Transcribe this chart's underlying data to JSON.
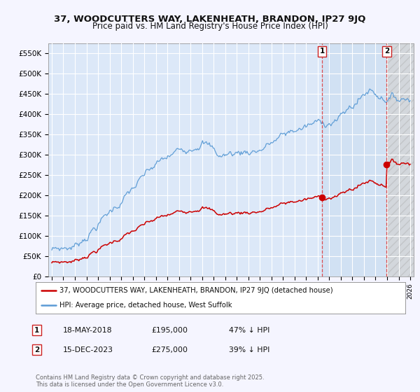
{
  "title": "37, WOODCUTTERS WAY, LAKENHEATH, BRANDON, IP27 9JQ",
  "subtitle": "Price paid vs. HM Land Registry's House Price Index (HPI)",
  "ylabel_ticks": [
    "£0",
    "£50K",
    "£100K",
    "£150K",
    "£200K",
    "£250K",
    "£300K",
    "£350K",
    "£400K",
    "£450K",
    "£500K",
    "£550K"
  ],
  "ytick_values": [
    0,
    50000,
    100000,
    150000,
    200000,
    250000,
    300000,
    350000,
    400000,
    450000,
    500000,
    550000
  ],
  "ylim": [
    0,
    575000
  ],
  "background_color": "#f5f5ff",
  "plot_bg_color": "#dce8f8",
  "hatch_bg_color": "#e8e8e8",
  "shade_between_color": "#ccddf5",
  "grid_color": "#ffffff",
  "hpi_color": "#5b9bd5",
  "price_color": "#cc0000",
  "marker1_date": 2018.37,
  "marker1_price": 195000,
  "marker2_date": 2023.96,
  "marker2_price": 275000,
  "legend_price_label": "37, WOODCUTTERS WAY, LAKENHEATH, BRANDON, IP27 9JQ (detached house)",
  "legend_hpi_label": "HPI: Average price, detached house, West Suffolk",
  "footer": "Contains HM Land Registry data © Crown copyright and database right 2025.\nThis data is licensed under the Open Government Licence v3.0.",
  "title_fontsize": 9.5,
  "subtitle_fontsize": 8.5,
  "ann_data": [
    [
      "1",
      "18-MAY-2018",
      "£195,000",
      "47% ↓ HPI"
    ],
    [
      "2",
      "15-DEC-2023",
      "£275,000",
      "39% ↓ HPI"
    ]
  ]
}
